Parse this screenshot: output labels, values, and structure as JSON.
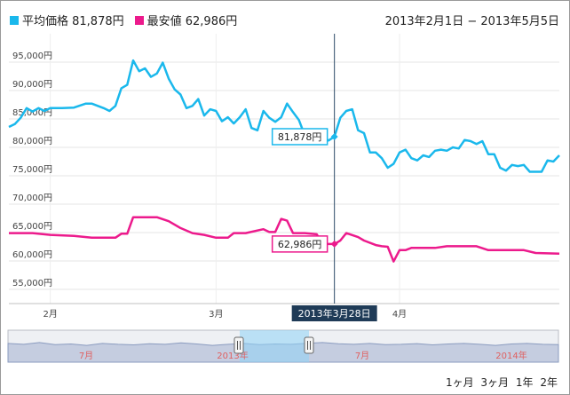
{
  "legend": {
    "avg_label": "平均価格 81,878円",
    "min_label": "最安値 62,986円",
    "avg_color": "#1ab8ec",
    "min_color": "#ec1a8c"
  },
  "date_range": "2013年2月1日 − 2013年5月5日",
  "crosshair": {
    "date_label": "2013年3月28日",
    "avg_tooltip": "81,878円",
    "min_tooltip": "62,986円"
  },
  "navigator": {
    "labels": [
      "7月",
      "2013年",
      "7月",
      "2014年"
    ],
    "handle_icon": "grip-icon"
  },
  "range_buttons": [
    "1ヶ月",
    "3ヶ月",
    "1年",
    "2年"
  ],
  "chart_data": {
    "type": "line",
    "ylim": [
      52500,
      100000
    ],
    "yticks": [
      55000,
      60000,
      65000,
      70000,
      75000,
      80000,
      85000,
      90000,
      95000
    ],
    "ytick_labels": [
      "55,000円",
      "60,000円",
      "65,000円",
      "70,000円",
      "75,000円",
      "80,000円",
      "85,000円",
      "90,000円",
      "95,000円"
    ],
    "xlim": [
      "2013-02-01",
      "2013-05-05"
    ],
    "xticks": [
      {
        "date": "2013-02-08",
        "label": "2月"
      },
      {
        "date": "2013-03-08",
        "label": "3月"
      },
      {
        "date": "2013-04-08",
        "label": "4月"
      }
    ],
    "crosshair_date": "2013-03-28",
    "series": [
      {
        "name": "平均価格",
        "color": "#1ab8ec",
        "points": [
          [
            "2013-02-01",
            83600
          ],
          [
            "2013-02-02",
            84100
          ],
          [
            "2013-02-03",
            85200
          ],
          [
            "2013-02-04",
            86900
          ],
          [
            "2013-02-05",
            86300
          ],
          [
            "2013-02-06",
            86900
          ],
          [
            "2013-02-07",
            86400
          ],
          [
            "2013-02-08",
            86900
          ],
          [
            "2013-02-10",
            86900
          ],
          [
            "2013-02-12",
            87000
          ],
          [
            "2013-02-14",
            87700
          ],
          [
            "2013-02-15",
            87700
          ],
          [
            "2013-02-17",
            86900
          ],
          [
            "2013-02-18",
            86400
          ],
          [
            "2013-02-19",
            87300
          ],
          [
            "2013-02-20",
            90400
          ],
          [
            "2013-02-21",
            91000
          ],
          [
            "2013-02-22",
            95300
          ],
          [
            "2013-02-23",
            93400
          ],
          [
            "2013-02-24",
            93900
          ],
          [
            "2013-02-25",
            92400
          ],
          [
            "2013-02-26",
            93000
          ],
          [
            "2013-02-27",
            94900
          ],
          [
            "2013-02-28",
            92100
          ],
          [
            "2013-03-01",
            90200
          ],
          [
            "2013-03-02",
            89300
          ],
          [
            "2013-03-03",
            86900
          ],
          [
            "2013-03-04",
            87300
          ],
          [
            "2013-03-05",
            88500
          ],
          [
            "2013-03-06",
            85600
          ],
          [
            "2013-03-07",
            86700
          ],
          [
            "2013-03-08",
            86400
          ],
          [
            "2013-03-09",
            84600
          ],
          [
            "2013-03-10",
            85300
          ],
          [
            "2013-03-11",
            84200
          ],
          [
            "2013-03-12",
            85300
          ],
          [
            "2013-03-13",
            86700
          ],
          [
            "2013-03-14",
            83400
          ],
          [
            "2013-03-15",
            83000
          ],
          [
            "2013-03-16",
            86400
          ],
          [
            "2013-03-17",
            85200
          ],
          [
            "2013-03-18",
            84500
          ],
          [
            "2013-03-19",
            85300
          ],
          [
            "2013-03-20",
            87700
          ],
          [
            "2013-03-21",
            86200
          ],
          [
            "2013-03-22",
            84800
          ],
          [
            "2013-03-23",
            82100
          ],
          [
            "2013-03-24",
            81300
          ],
          [
            "2013-03-25",
            81900
          ],
          [
            "2013-03-26",
            81700
          ],
          [
            "2013-03-27",
            81200
          ],
          [
            "2013-03-28",
            81878
          ],
          [
            "2013-03-29",
            85200
          ],
          [
            "2013-03-30",
            86400
          ],
          [
            "2013-03-31",
            86700
          ],
          [
            "2013-04-01",
            83000
          ],
          [
            "2013-04-02",
            82500
          ],
          [
            "2013-04-03",
            79100
          ],
          [
            "2013-04-04",
            79100
          ],
          [
            "2013-04-05",
            78100
          ],
          [
            "2013-04-06",
            76400
          ],
          [
            "2013-04-07",
            77100
          ],
          [
            "2013-04-08",
            79100
          ],
          [
            "2013-04-09",
            79600
          ],
          [
            "2013-04-10",
            78100
          ],
          [
            "2013-04-11",
            77700
          ],
          [
            "2013-04-12",
            78600
          ],
          [
            "2013-04-13",
            78300
          ],
          [
            "2013-04-14",
            79400
          ],
          [
            "2013-04-15",
            79600
          ],
          [
            "2013-04-16",
            79400
          ],
          [
            "2013-04-17",
            80000
          ],
          [
            "2013-04-18",
            79800
          ],
          [
            "2013-04-19",
            81300
          ],
          [
            "2013-04-20",
            81100
          ],
          [
            "2013-04-21",
            80600
          ],
          [
            "2013-04-22",
            81100
          ],
          [
            "2013-04-23",
            78800
          ],
          [
            "2013-04-24",
            78800
          ],
          [
            "2013-04-25",
            76400
          ],
          [
            "2013-04-26",
            75900
          ],
          [
            "2013-04-27",
            76900
          ],
          [
            "2013-04-28",
            76700
          ],
          [
            "2013-04-29",
            76900
          ],
          [
            "2013-04-30",
            75700
          ],
          [
            "2013-05-01",
            75700
          ],
          [
            "2013-05-02",
            75700
          ],
          [
            "2013-05-03",
            77700
          ],
          [
            "2013-05-04",
            77500
          ],
          [
            "2013-05-05",
            78600
          ]
        ]
      },
      {
        "name": "最安値",
        "color": "#ec1a8c",
        "points": [
          [
            "2013-02-01",
            64900
          ],
          [
            "2013-02-05",
            64900
          ],
          [
            "2013-02-08",
            64600
          ],
          [
            "2013-02-12",
            64400
          ],
          [
            "2013-02-15",
            64100
          ],
          [
            "2013-02-19",
            64100
          ],
          [
            "2013-02-20",
            64800
          ],
          [
            "2013-02-21",
            64800
          ],
          [
            "2013-02-22",
            67700
          ],
          [
            "2013-02-24",
            67700
          ],
          [
            "2013-02-26",
            67700
          ],
          [
            "2013-02-28",
            67000
          ],
          [
            "2013-03-02",
            65800
          ],
          [
            "2013-03-04",
            64900
          ],
          [
            "2013-03-06",
            64600
          ],
          [
            "2013-03-08",
            64100
          ],
          [
            "2013-03-10",
            64100
          ],
          [
            "2013-03-11",
            64900
          ],
          [
            "2013-03-13",
            64900
          ],
          [
            "2013-03-16",
            65600
          ],
          [
            "2013-03-17",
            65100
          ],
          [
            "2013-03-18",
            65100
          ],
          [
            "2013-03-19",
            67400
          ],
          [
            "2013-03-20",
            67100
          ],
          [
            "2013-03-21",
            64900
          ],
          [
            "2013-03-23",
            64900
          ],
          [
            "2013-03-25",
            64700
          ],
          [
            "2013-03-26",
            62986
          ],
          [
            "2013-03-28",
            62986
          ],
          [
            "2013-03-29",
            63600
          ],
          [
            "2013-03-30",
            64900
          ],
          [
            "2013-04-01",
            64200
          ],
          [
            "2013-04-02",
            63600
          ],
          [
            "2013-04-04",
            62800
          ],
          [
            "2013-04-05",
            62600
          ],
          [
            "2013-04-06",
            62500
          ],
          [
            "2013-04-07",
            59900
          ],
          [
            "2013-04-08",
            61900
          ],
          [
            "2013-04-09",
            61900
          ],
          [
            "2013-04-10",
            62300
          ],
          [
            "2013-04-14",
            62300
          ],
          [
            "2013-04-16",
            62600
          ],
          [
            "2013-04-21",
            62600
          ],
          [
            "2013-04-23",
            61900
          ],
          [
            "2013-04-29",
            61900
          ],
          [
            "2013-05-01",
            61400
          ],
          [
            "2013-05-05",
            61300
          ]
        ]
      }
    ]
  }
}
